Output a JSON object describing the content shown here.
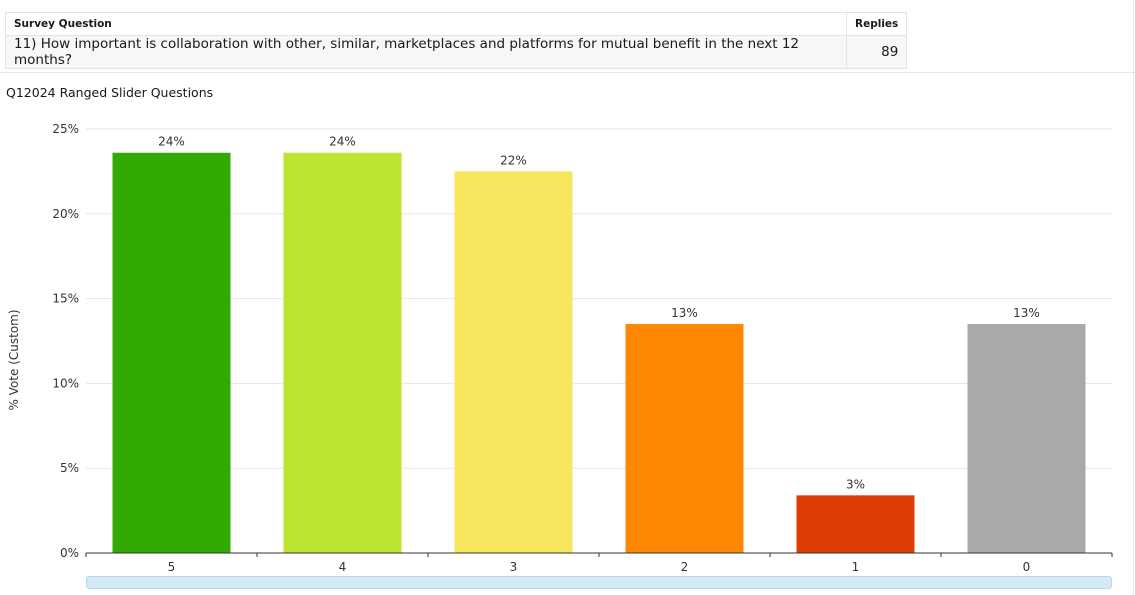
{
  "table": {
    "question_header": "Survey Question",
    "replies_header": "Replies",
    "question": "11) How important is collaboration with other, similar, marketplaces and platforms for mutual benefit in the next 12 months?",
    "replies": "89"
  },
  "chart_title": "Q12024 Ranged Slider Questions",
  "chart_data": {
    "type": "bar",
    "ylabel": "% Vote (Custom)",
    "ylim": [
      0,
      25
    ],
    "yticks": [
      "0%",
      "5%",
      "10%",
      "15%",
      "20%",
      "25%"
    ],
    "ytick_values": [
      0,
      5,
      10,
      15,
      20,
      25
    ],
    "categories": [
      "5",
      "4",
      "3",
      "2",
      "1",
      "0"
    ],
    "values": [
      23.6,
      23.6,
      22.5,
      13.5,
      3.4,
      13.5
    ],
    "data_labels": [
      "24%",
      "24%",
      "22%",
      "13%",
      "3%",
      "13%"
    ],
    "colors": [
      "#31ab03",
      "#bbe532",
      "#f6e55d",
      "#ff8600",
      "#de3e04",
      "#a9a9a9"
    ],
    "grid": true
  }
}
